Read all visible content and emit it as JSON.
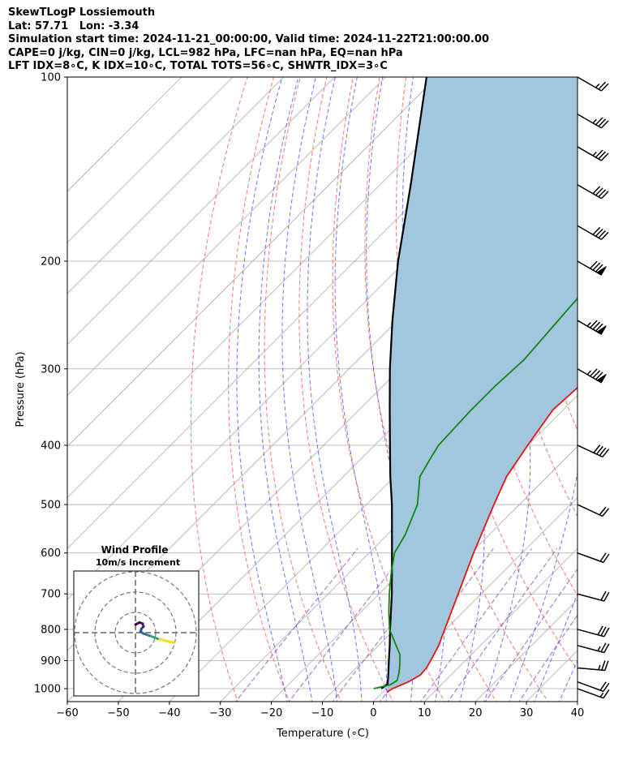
{
  "header": {
    "line1": "SkewTLogP Lossiemouth",
    "line2": "Lat: 57.71   Lon: -3.34",
    "line3": "Simulation start time: 2024-11-21_00:00:00, Valid time: 2024-11-22T21:00:00.00",
    "line4": "CAPE=0 j/kg, CIN=0 j/kg, LCL=982 hPa, LFC=nan hPa, EQ=nan hPa",
    "line5": "LFT IDX=8∘C, K IDX=10∘C, TOTAL TOTS=56∘C, SHWTR_IDX=3∘C"
  },
  "inset": {
    "title": "Wind Profile",
    "subtitle": "10m/s increment"
  },
  "chart_data": {
    "type": "line",
    "xlabel": "Temperature (∘C)",
    "ylabel": "Pressure (hPa)",
    "xlim": [
      -60,
      40
    ],
    "ylim": [
      1050,
      100
    ],
    "yscale": "log",
    "skew": "45deg",
    "x_ticks": [
      "−60",
      "−50",
      "−40",
      "−30",
      "−20",
      "−10",
      "0",
      "10",
      "20",
      "30",
      "40"
    ],
    "y_ticks": [
      "100",
      "200",
      "300",
      "400",
      "500",
      "600",
      "700",
      "800",
      "900",
      "1000"
    ],
    "colors": {
      "temperature": "#ee1111",
      "dewpoint": "#118811",
      "parcel": "#000000",
      "shading": "#a3c6df",
      "dry_adiabat": "#f06060",
      "moist_adiabat": "#5050ee",
      "mixing_ratio": "#8844cc",
      "isotherm": "#aaaaaa"
    },
    "series": [
      {
        "id": "temperature",
        "points": [
          [
            1014,
            0.8
          ],
          [
            1000,
            1.2
          ],
          [
            975,
            3.0
          ],
          [
            950,
            4.0
          ],
          [
            925,
            3.8
          ],
          [
            900,
            3.2
          ],
          [
            850,
            1.8
          ],
          [
            800,
            -0.2
          ],
          [
            700,
            -4.5
          ],
          [
            600,
            -9.5
          ],
          [
            500,
            -15.0
          ],
          [
            450,
            -18.0
          ],
          [
            400,
            -20.0
          ],
          [
            350,
            -22.0
          ],
          [
            320,
            -21.5
          ],
          [
            300,
            -21.5
          ],
          [
            250,
            -25.5
          ],
          [
            230,
            -27.0
          ],
          [
            200,
            -24.0
          ],
          [
            180,
            -20.0
          ],
          [
            150,
            -17.5
          ],
          [
            130,
            -16.5
          ],
          [
            115,
            -12.0
          ],
          [
            100,
            -7.5
          ]
        ]
      },
      {
        "id": "dewpoint",
        "points": [
          [
            1000,
            -2.5
          ],
          [
            985,
            0.0
          ],
          [
            970,
            0.5
          ],
          [
            945,
            -0.5
          ],
          [
            915,
            -2.0
          ],
          [
            880,
            -4.0
          ],
          [
            800,
            -11.0
          ],
          [
            750,
            -14.5
          ],
          [
            700,
            -18.0
          ],
          [
            650,
            -21.5
          ],
          [
            600,
            -25.0
          ],
          [
            560,
            -26.5
          ],
          [
            500,
            -30.0
          ],
          [
            450,
            -35.0
          ],
          [
            420,
            -36.5
          ],
          [
            400,
            -37.5
          ],
          [
            350,
            -38.0
          ],
          [
            320,
            -38.0
          ],
          [
            290,
            -37.5
          ],
          [
            250,
            -38.5
          ],
          [
            215,
            -39.5
          ],
          [
            200,
            -41.0
          ],
          [
            180,
            -44.0
          ],
          [
            150,
            -46.0
          ],
          [
            130,
            -45.5
          ],
          [
            110,
            -43.5
          ],
          [
            100,
            -41.5
          ]
        ]
      },
      {
        "id": "parcel",
        "points": [
          [
            1000,
            -1.0
          ],
          [
            982,
            -0.7
          ],
          [
            950,
            -2.3
          ],
          [
            900,
            -5.0
          ],
          [
            850,
            -7.8
          ],
          [
            800,
            -10.9
          ],
          [
            700,
            -17.5
          ],
          [
            600,
            -25.5
          ],
          [
            500,
            -35.0
          ],
          [
            450,
            -40.8
          ],
          [
            400,
            -47.0
          ],
          [
            350,
            -54.0
          ],
          [
            300,
            -62.0
          ],
          [
            250,
            -71.0
          ],
          [
            200,
            -81.5
          ],
          [
            150,
            -94.0
          ],
          [
            100,
            -112.0
          ]
        ]
      }
    ],
    "wind_barbs": [
      {
        "p": 1000,
        "dir": 290,
        "kt": 15
      },
      {
        "p": 975,
        "dir": 290,
        "kt": 20
      },
      {
        "p": 925,
        "dir": 275,
        "kt": 25
      },
      {
        "p": 850,
        "dir": 285,
        "kt": 25
      },
      {
        "p": 800,
        "dir": 285,
        "kt": 30
      },
      {
        "p": 700,
        "dir": 285,
        "kt": 20
      },
      {
        "p": 600,
        "dir": 290,
        "kt": 20
      },
      {
        "p": 500,
        "dir": 295,
        "kt": 20
      },
      {
        "p": 400,
        "dir": 295,
        "kt": 40
      },
      {
        "p": 300,
        "dir": 300,
        "kt": 85
      },
      {
        "p": 250,
        "dir": 300,
        "kt": 85
      },
      {
        "p": 200,
        "dir": 300,
        "kt": 80
      },
      {
        "p": 175,
        "dir": 300,
        "kt": 40
      },
      {
        "p": 150,
        "dir": 300,
        "kt": 40
      },
      {
        "p": 130,
        "dir": 300,
        "kt": 35
      },
      {
        "p": 115,
        "dir": 300,
        "kt": 35
      },
      {
        "p": 100,
        "dir": 300,
        "kt": 25
      }
    ],
    "hodograph": {
      "rings_ms": [
        10,
        20,
        30
      ],
      "points_ms": [
        [
          19,
          -5
        ],
        [
          15,
          -4
        ],
        [
          11,
          -3
        ],
        [
          7,
          -1.5
        ],
        [
          4,
          -0.5
        ],
        [
          2.5,
          0.5
        ],
        [
          3,
          2
        ],
        [
          4,
          3
        ],
        [
          3.5,
          4.5
        ],
        [
          2,
          5
        ],
        [
          0,
          4
        ]
      ]
    }
  }
}
